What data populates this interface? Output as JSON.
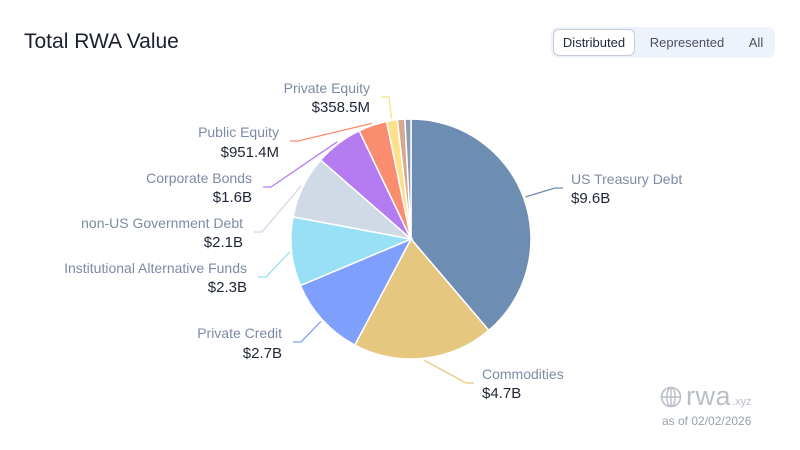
{
  "header": {
    "title": "Total RWA Value"
  },
  "toggle": {
    "options": [
      {
        "label": "Distributed",
        "active": true
      },
      {
        "label": "Represented",
        "active": false
      },
      {
        "label": "All",
        "active": false
      }
    ]
  },
  "footer": {
    "brand": "rwa",
    "tld": ".xyz",
    "as_of": "as of 02/02/2026"
  },
  "chart_data": {
    "type": "pie",
    "title": "",
    "unit": "USD",
    "slices": [
      {
        "name": "US Treasury Debt",
        "value": 9.6,
        "value_label": "$9.6B",
        "color": "#6d8db3"
      },
      {
        "name": "Commodities",
        "value": 4.7,
        "value_label": "$4.7B",
        "color": "#e6c77f"
      },
      {
        "name": "Private Credit",
        "value": 2.7,
        "value_label": "$2.7B",
        "color": "#7f9ffc"
      },
      {
        "name": "Institutional Alternative Funds",
        "value": 2.3,
        "value_label": "$2.3B",
        "color": "#98e0f5"
      },
      {
        "name": "non-US Government Debt",
        "value": 2.1,
        "value_label": "$2.1B",
        "color": "#cfdae6"
      },
      {
        "name": "Corporate Bonds",
        "value": 1.6,
        "value_label": "$1.6B",
        "color": "#b57cf2"
      },
      {
        "name": "Public Equity",
        "value": 0.9514,
        "value_label": "$951.4M",
        "color": "#fa8d70"
      },
      {
        "name": "Private Equity",
        "value": 0.3585,
        "value_label": "$358.5M",
        "color": "#fde08a"
      },
      {
        "name": "",
        "value": 0.25,
        "value_label": "",
        "color": "#d7a78f"
      },
      {
        "name": "",
        "value": 0.2,
        "value_label": "",
        "color": "#8a9bb4"
      }
    ],
    "legend": "none"
  }
}
